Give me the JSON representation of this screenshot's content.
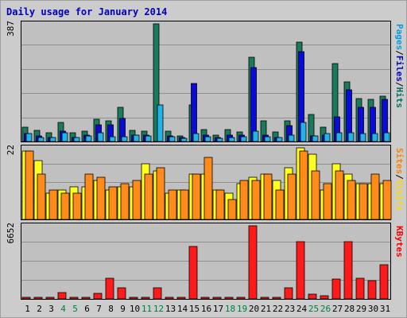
{
  "chart_data": {
    "type": "bar",
    "title": "Daily usage for January 2014",
    "categories": [
      "1",
      "2",
      "3",
      "4",
      "5",
      "6",
      "7",
      "8",
      "9",
      "10",
      "11",
      "12",
      "13",
      "14",
      "15",
      "16",
      "17",
      "18",
      "19",
      "20",
      "21",
      "22",
      "23",
      "24",
      "25",
      "26",
      "27",
      "28",
      "29",
      "30",
      "31"
    ],
    "weekend_days": [
      "4",
      "5",
      "11",
      "12",
      "18",
      "19",
      "25",
      "26"
    ],
    "panels": [
      {
        "id": "top",
        "max_label": "387",
        "ylim": [
          0,
          387
        ],
        "side_labels": [
          {
            "text": "Pages",
            "color": "#00a0e0"
          },
          {
            "text": "/",
            "color": "#000000"
          },
          {
            "text": "Files",
            "color": "#0000c0"
          },
          {
            "text": "/",
            "color": "#000000"
          },
          {
            "text": "Hits",
            "color": "#007060"
          }
        ],
        "series": [
          {
            "name": "Hits",
            "color": "#1a7a5e",
            "values": [
              46,
              36,
              28,
              64,
              30,
              33,
              74,
              68,
              113,
              36,
              33,
              387,
              33,
              18,
              119,
              38,
              21,
              38,
              31,
              278,
              69,
              31,
              69,
              327,
              89,
              46,
              256,
              197,
              142,
              139,
              150
            ]
          },
          {
            "name": "Files",
            "color": "#0b0bd9",
            "values": [
              25,
              18,
              13,
              33,
              12,
              20,
              56,
              56,
              76,
              20,
              20,
              0,
              18,
              12,
              190,
              20,
              12,
              20,
              20,
              243,
              20,
              13,
              51,
              295,
              18,
              20,
              82,
              169,
              113,
              113,
              139
            ]
          },
          {
            "name": "Pages",
            "color": "#22b4e9",
            "values": [
              25,
              12,
              12,
              28,
              12,
              18,
              30,
              15,
              15,
              20,
              18,
              119,
              15,
              10,
              25,
              15,
              10,
              12,
              15,
              33,
              15,
              12,
              20,
              64,
              18,
              25,
              30,
              30,
              25,
              25,
              30
            ]
          }
        ]
      },
      {
        "id": "mid",
        "max_label": "22",
        "ylim": [
          0,
          22
        ],
        "side_labels": [
          {
            "text": "Sites",
            "color": "#ff8000"
          },
          {
            "text": "/",
            "color": "#000000"
          },
          {
            "text": "Visits",
            "color": "#ffd700"
          }
        ],
        "series": [
          {
            "name": "Visits",
            "color": "#ffff22",
            "values": [
              21,
              18,
              8,
              9,
              10,
              10,
              12,
              9,
              10,
              10,
              17,
              15,
              8,
              9,
              14,
              14,
              9,
              8,
              11,
              13,
              14,
              12,
              16,
              22,
              20,
              9,
              17,
              14,
              11,
              11,
              11
            ]
          },
          {
            "name": "Sites",
            "color": "#ff8c1a",
            "values": [
              21,
              14,
              9,
              8,
              8,
              14,
              13,
              10,
              11,
              12,
              14,
              16,
              9,
              9,
              14,
              19,
              9,
              6,
              12,
              12,
              14,
              9,
              14,
              21,
              15,
              11,
              15,
              12,
              11,
              14,
              12
            ]
          }
        ]
      },
      {
        "id": "bot",
        "max_label": "6652",
        "ylim": [
          0,
          6652
        ],
        "side_labels": [
          {
            "text": "KBytes",
            "color": "#ff0000"
          }
        ],
        "series": [
          {
            "name": "KBytes",
            "color": "#ff1a1a",
            "values": [
              40,
              90,
              70,
              550,
              50,
              50,
              500,
              1900,
              1040,
              110,
              110,
              1040,
              120,
              70,
              4800,
              140,
              80,
              120,
              100,
              6652,
              100,
              70,
              1000,
              5230,
              400,
              300,
              1800,
              5230,
              1900,
              1640,
              3100
            ]
          }
        ]
      }
    ]
  }
}
